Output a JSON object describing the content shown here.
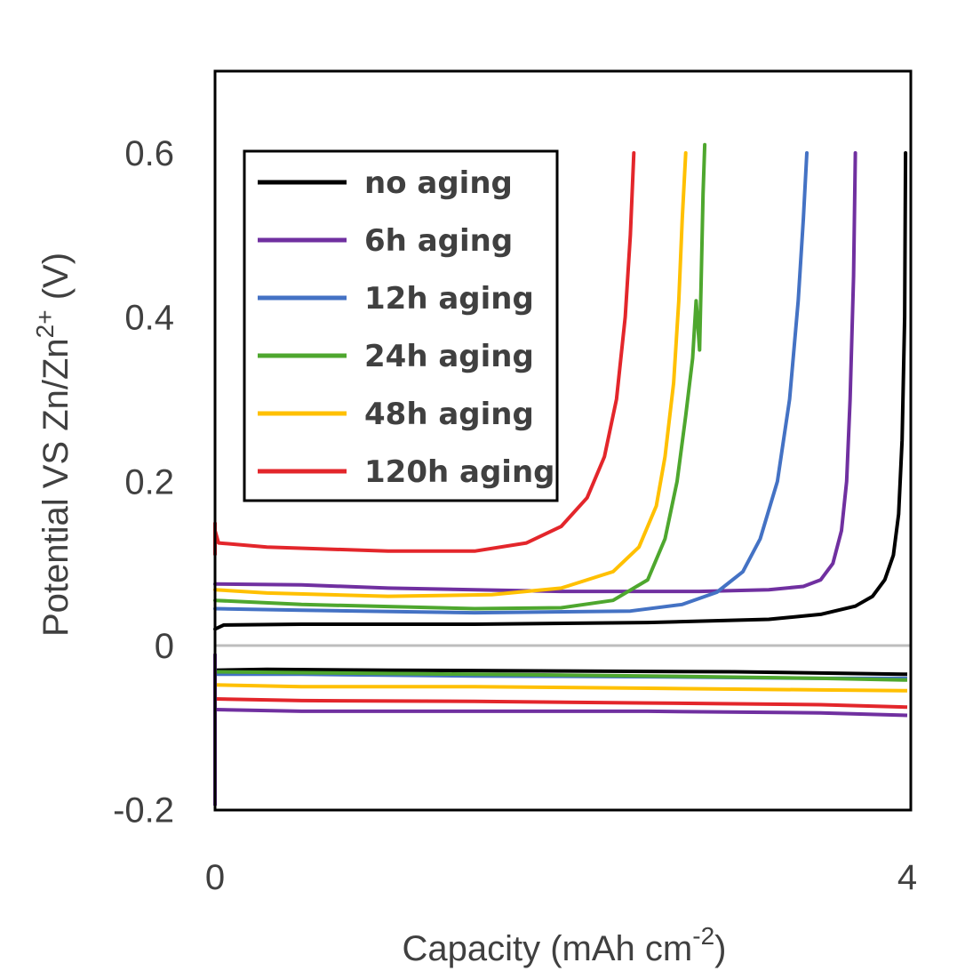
{
  "chart_data": {
    "type": "line",
    "title": "",
    "xlabel_main": "Capacity (mAh cm",
    "xlabel_sup": "-2",
    "xlabel_close": ")",
    "ylabel_main": "Potential VS Zn/Zn",
    "ylabel_sup": "2+",
    "ylabel_close": " (V)",
    "xlim": [
      0,
      4
    ],
    "ylim": [
      -0.2,
      0.7
    ],
    "xticks": [
      "0",
      "4"
    ],
    "yticks": [
      "-0.2",
      "0",
      "0.2",
      "0.4",
      "0.6"
    ],
    "reference_line": {
      "y": 0,
      "color": "#bdbdbd"
    },
    "legend_position": "top-left",
    "series": [
      {
        "name": "no aging",
        "color": "#000000",
        "charge": [
          [
            0,
            0.02
          ],
          [
            0.05,
            0.025
          ],
          [
            0.5,
            0.026
          ],
          [
            1.5,
            0.026
          ],
          [
            2.5,
            0.028
          ],
          [
            3.2,
            0.032
          ],
          [
            3.5,
            0.038
          ],
          [
            3.7,
            0.048
          ],
          [
            3.8,
            0.06
          ],
          [
            3.87,
            0.08
          ],
          [
            3.92,
            0.11
          ],
          [
            3.95,
            0.16
          ],
          [
            3.97,
            0.25
          ],
          [
            3.985,
            0.4
          ],
          [
            3.99,
            0.6
          ]
        ],
        "discharge": [
          [
            0,
            -0.03
          ],
          [
            0.3,
            -0.029
          ],
          [
            1,
            -0.03
          ],
          [
            2,
            -0.031
          ],
          [
            3,
            -0.032
          ],
          [
            4,
            -0.035
          ]
        ]
      },
      {
        "name": "6h aging",
        "color": "#7030a0",
        "charge": [
          [
            0,
            0.075
          ],
          [
            0.5,
            0.074
          ],
          [
            1,
            0.07
          ],
          [
            2,
            0.066
          ],
          [
            2.8,
            0.066
          ],
          [
            3.2,
            0.068
          ],
          [
            3.4,
            0.072
          ],
          [
            3.5,
            0.08
          ],
          [
            3.57,
            0.1
          ],
          [
            3.62,
            0.14
          ],
          [
            3.65,
            0.2
          ],
          [
            3.67,
            0.3
          ],
          [
            3.69,
            0.45
          ],
          [
            3.7,
            0.6
          ]
        ],
        "discharge": [
          [
            0,
            -0.078
          ],
          [
            0.5,
            -0.08
          ],
          [
            1.5,
            -0.08
          ],
          [
            2.5,
            -0.08
          ],
          [
            3.5,
            -0.082
          ],
          [
            4,
            -0.085
          ]
        ]
      },
      {
        "name": "12h aging",
        "color": "#4472c4",
        "charge": [
          [
            0,
            0.045
          ],
          [
            0.5,
            0.043
          ],
          [
            1.5,
            0.04
          ],
          [
            2.4,
            0.042
          ],
          [
            2.7,
            0.05
          ],
          [
            2.9,
            0.065
          ],
          [
            3.05,
            0.09
          ],
          [
            3.15,
            0.13
          ],
          [
            3.25,
            0.2
          ],
          [
            3.32,
            0.3
          ],
          [
            3.37,
            0.42
          ],
          [
            3.4,
            0.52
          ],
          [
            3.42,
            0.6
          ]
        ],
        "discharge": [
          [
            0,
            -0.035
          ],
          [
            0.5,
            -0.035
          ],
          [
            1.5,
            -0.037
          ],
          [
            2.5,
            -0.038
          ],
          [
            3.5,
            -0.04
          ],
          [
            4,
            -0.04
          ]
        ]
      },
      {
        "name": "24h aging",
        "color": "#4ea72e",
        "charge": [
          [
            0,
            0.055
          ],
          [
            0.5,
            0.05
          ],
          [
            1.5,
            0.045
          ],
          [
            2,
            0.046
          ],
          [
            2.3,
            0.055
          ],
          [
            2.5,
            0.08
          ],
          [
            2.6,
            0.13
          ],
          [
            2.67,
            0.2
          ],
          [
            2.72,
            0.28
          ],
          [
            2.76,
            0.35
          ],
          [
            2.78,
            0.42
          ],
          [
            2.8,
            0.36
          ],
          [
            2.81,
            0.45
          ],
          [
            2.82,
            0.55
          ],
          [
            2.83,
            0.61
          ]
        ],
        "discharge": [
          [
            0,
            -0.032
          ],
          [
            0.5,
            -0.033
          ],
          [
            1.5,
            -0.035
          ],
          [
            2.5,
            -0.037
          ],
          [
            3.5,
            -0.04
          ],
          [
            4,
            -0.042
          ]
        ]
      },
      {
        "name": "48h aging",
        "color": "#ffc000",
        "charge": [
          [
            0,
            0.068
          ],
          [
            0.3,
            0.064
          ],
          [
            1,
            0.06
          ],
          [
            1.6,
            0.062
          ],
          [
            2,
            0.07
          ],
          [
            2.3,
            0.09
          ],
          [
            2.45,
            0.12
          ],
          [
            2.55,
            0.17
          ],
          [
            2.6,
            0.23
          ],
          [
            2.65,
            0.32
          ],
          [
            2.68,
            0.42
          ],
          [
            2.7,
            0.52
          ],
          [
            2.72,
            0.6
          ]
        ],
        "discharge": [
          [
            0,
            -0.048
          ],
          [
            0.5,
            -0.05
          ],
          [
            1.5,
            -0.05
          ],
          [
            2.5,
            -0.052
          ],
          [
            3.5,
            -0.054
          ],
          [
            4,
            -0.055
          ]
        ]
      },
      {
        "name": "120h aging",
        "color": "#e3262b",
        "charge": [
          [
            0,
            0.14
          ],
          [
            0.02,
            0.125
          ],
          [
            0.3,
            0.12
          ],
          [
            1,
            0.115
          ],
          [
            1.5,
            0.115
          ],
          [
            1.8,
            0.125
          ],
          [
            2,
            0.145
          ],
          [
            2.15,
            0.18
          ],
          [
            2.25,
            0.23
          ],
          [
            2.32,
            0.3
          ],
          [
            2.37,
            0.4
          ],
          [
            2.4,
            0.5
          ],
          [
            2.42,
            0.6
          ]
        ],
        "discharge": [
          [
            0,
            -0.065
          ],
          [
            0.5,
            -0.067
          ],
          [
            1.5,
            -0.068
          ],
          [
            2.5,
            -0.07
          ],
          [
            3.5,
            -0.072
          ],
          [
            4,
            -0.075
          ]
        ]
      }
    ]
  }
}
